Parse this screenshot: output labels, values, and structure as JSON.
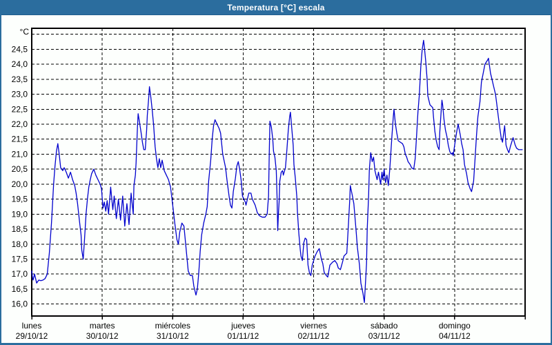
{
  "window": {
    "title": "Temperatura [°C] escala",
    "titlebar_color": "#2b6d9e",
    "border_color": "#2b6d9e"
  },
  "chart_data": {
    "type": "line",
    "title": "Temperatura [°C] escala",
    "y_unit_label": "°C",
    "ylabel": "",
    "xlabel": "",
    "ylim": [
      15.6,
      25.2
    ],
    "y_gridline_min": 16.0,
    "y_gridline_max": 25.0,
    "y_tick_step": 0.5,
    "y_labeled_max": 24.5,
    "decimal_separator": ",",
    "grid": "dashed",
    "legend": "none",
    "line_color": "#0000cd",
    "x_range_days": [
      0,
      7
    ],
    "x_days": [
      {
        "name": "lunes",
        "date": "29/10/12"
      },
      {
        "name": "martes",
        "date": "30/10/12"
      },
      {
        "name": "miércoles",
        "date": "31/10/12"
      },
      {
        "name": "jueves",
        "date": "01/11/12"
      },
      {
        "name": "viernes",
        "date": "02/11/12"
      },
      {
        "name": "sábado",
        "date": "03/11/12"
      },
      {
        "name": "domingo",
        "date": "04/11/12"
      }
    ],
    "series": [
      {
        "name": "Temperatura",
        "points": [
          [
            0.0,
            17.1
          ],
          [
            0.01,
            16.9
          ],
          [
            0.02,
            16.8
          ],
          [
            0.04,
            17.0
          ],
          [
            0.07,
            16.7
          ],
          [
            0.1,
            16.8
          ],
          [
            0.13,
            16.78
          ],
          [
            0.16,
            16.8
          ],
          [
            0.19,
            16.85
          ],
          [
            0.22,
            17.0
          ],
          [
            0.25,
            17.7
          ],
          [
            0.28,
            18.7
          ],
          [
            0.31,
            20.0
          ],
          [
            0.33,
            20.6
          ],
          [
            0.35,
            21.1
          ],
          [
            0.37,
            21.35
          ],
          [
            0.39,
            21.0
          ],
          [
            0.41,
            20.55
          ],
          [
            0.44,
            20.45
          ],
          [
            0.46,
            20.55
          ],
          [
            0.49,
            20.4
          ],
          [
            0.52,
            20.2
          ],
          [
            0.55,
            20.4
          ],
          [
            0.58,
            20.15
          ],
          [
            0.61,
            19.95
          ],
          [
            0.63,
            19.7
          ],
          [
            0.65,
            19.35
          ],
          [
            0.68,
            18.7
          ],
          [
            0.7,
            18.3
          ],
          [
            0.71,
            17.8
          ],
          [
            0.73,
            17.5
          ],
          [
            0.75,
            18.2
          ],
          [
            0.77,
            19.0
          ],
          [
            0.79,
            19.5
          ],
          [
            0.81,
            19.9
          ],
          [
            0.83,
            20.15
          ],
          [
            0.85,
            20.35
          ],
          [
            0.88,
            20.5
          ],
          [
            0.91,
            20.3
          ],
          [
            0.94,
            20.15
          ],
          [
            0.97,
            20.0
          ],
          [
            0.99,
            19.85
          ],
          [
            1.01,
            19.2
          ],
          [
            1.03,
            19.4
          ],
          [
            1.05,
            19.1
          ],
          [
            1.07,
            19.45
          ],
          [
            1.09,
            19.0
          ],
          [
            1.12,
            19.9
          ],
          [
            1.15,
            19.15
          ],
          [
            1.17,
            19.6
          ],
          [
            1.2,
            18.85
          ],
          [
            1.23,
            19.5
          ],
          [
            1.26,
            18.8
          ],
          [
            1.29,
            19.6
          ],
          [
            1.32,
            18.6
          ],
          [
            1.35,
            19.35
          ],
          [
            1.38,
            18.65
          ],
          [
            1.41,
            19.7
          ],
          [
            1.44,
            19.0
          ],
          [
            1.45,
            19.95
          ],
          [
            1.47,
            20.3
          ],
          [
            1.48,
            20.7
          ],
          [
            1.49,
            21.3
          ],
          [
            1.5,
            21.9
          ],
          [
            1.51,
            22.35
          ],
          [
            1.53,
            22.05
          ],
          [
            1.55,
            21.75
          ],
          [
            1.57,
            21.4
          ],
          [
            1.59,
            21.15
          ],
          [
            1.61,
            21.15
          ],
          [
            1.63,
            21.8
          ],
          [
            1.64,
            22.3
          ],
          [
            1.66,
            22.9
          ],
          [
            1.67,
            23.25
          ],
          [
            1.69,
            22.9
          ],
          [
            1.71,
            22.45
          ],
          [
            1.73,
            21.95
          ],
          [
            1.75,
            21.25
          ],
          [
            1.77,
            20.85
          ],
          [
            1.79,
            20.55
          ],
          [
            1.81,
            20.85
          ],
          [
            1.83,
            20.55
          ],
          [
            1.85,
            20.8
          ],
          [
            1.88,
            20.45
          ],
          [
            1.91,
            20.3
          ],
          [
            1.94,
            20.15
          ],
          [
            1.97,
            19.9
          ],
          [
            2.0,
            19.3
          ],
          [
            2.03,
            18.7
          ],
          [
            2.06,
            18.15
          ],
          [
            2.08,
            18.0
          ],
          [
            2.1,
            18.4
          ],
          [
            2.13,
            18.7
          ],
          [
            2.16,
            18.6
          ],
          [
            2.19,
            17.85
          ],
          [
            2.22,
            17.1
          ],
          [
            2.25,
            16.95
          ],
          [
            2.28,
            16.95
          ],
          [
            2.3,
            16.6
          ],
          [
            2.33,
            16.3
          ],
          [
            2.35,
            16.5
          ],
          [
            2.37,
            17.05
          ],
          [
            2.39,
            17.75
          ],
          [
            2.41,
            18.3
          ],
          [
            2.44,
            18.7
          ],
          [
            2.47,
            19.0
          ],
          [
            2.49,
            19.25
          ],
          [
            2.51,
            20.1
          ],
          [
            2.54,
            20.8
          ],
          [
            2.56,
            21.5
          ],
          [
            2.58,
            21.95
          ],
          [
            2.6,
            22.15
          ],
          [
            2.63,
            22.0
          ],
          [
            2.66,
            21.85
          ],
          [
            2.68,
            21.7
          ],
          [
            2.71,
            21.0
          ],
          [
            2.75,
            20.55
          ],
          [
            2.77,
            20.15
          ],
          [
            2.8,
            19.6
          ],
          [
            2.82,
            19.3
          ],
          [
            2.84,
            19.2
          ],
          [
            2.86,
            19.75
          ],
          [
            2.89,
            20.2
          ],
          [
            2.91,
            20.6
          ],
          [
            2.93,
            20.75
          ],
          [
            2.95,
            20.5
          ],
          [
            2.97,
            20.15
          ],
          [
            2.99,
            19.6
          ],
          [
            3.03,
            19.4
          ],
          [
            3.04,
            19.3
          ],
          [
            3.08,
            19.7
          ],
          [
            3.11,
            19.7
          ],
          [
            3.13,
            19.5
          ],
          [
            3.17,
            19.3
          ],
          [
            3.2,
            19.05
          ],
          [
            3.23,
            18.95
          ],
          [
            3.27,
            18.9
          ],
          [
            3.31,
            18.9
          ],
          [
            3.34,
            19.0
          ],
          [
            3.36,
            19.6
          ],
          [
            3.37,
            21.0
          ],
          [
            3.38,
            22.1
          ],
          [
            3.4,
            21.9
          ],
          [
            3.42,
            21.5
          ],
          [
            3.43,
            21.1
          ],
          [
            3.45,
            20.9
          ],
          [
            3.47,
            20.45
          ],
          [
            3.48,
            19.6
          ],
          [
            3.49,
            18.45
          ],
          [
            3.5,
            19.0
          ],
          [
            3.51,
            19.4
          ],
          [
            3.52,
            20.1
          ],
          [
            3.54,
            20.4
          ],
          [
            3.56,
            20.45
          ],
          [
            3.57,
            20.3
          ],
          [
            3.6,
            20.55
          ],
          [
            3.62,
            21.15
          ],
          [
            3.64,
            21.8
          ],
          [
            3.66,
            22.25
          ],
          [
            3.67,
            22.4
          ],
          [
            3.69,
            21.85
          ],
          [
            3.71,
            21.3
          ],
          [
            3.72,
            20.65
          ],
          [
            3.74,
            20.2
          ],
          [
            3.76,
            19.6
          ],
          [
            3.77,
            19.05
          ],
          [
            3.79,
            18.35
          ],
          [
            3.81,
            17.8
          ],
          [
            3.82,
            17.6
          ],
          [
            3.84,
            17.45
          ],
          [
            3.86,
            18.05
          ],
          [
            3.88,
            18.2
          ],
          [
            3.9,
            18.15
          ],
          [
            3.92,
            17.3
          ],
          [
            3.94,
            17.05
          ],
          [
            3.96,
            16.95
          ],
          [
            3.98,
            17.3
          ],
          [
            4.02,
            17.6
          ],
          [
            4.05,
            17.75
          ],
          [
            4.08,
            17.85
          ],
          [
            4.11,
            17.5
          ],
          [
            4.13,
            17.35
          ],
          [
            4.15,
            17.05
          ],
          [
            4.18,
            16.95
          ],
          [
            4.2,
            16.9
          ],
          [
            4.23,
            17.3
          ],
          [
            4.27,
            17.4
          ],
          [
            4.3,
            17.45
          ],
          [
            4.33,
            17.35
          ],
          [
            4.35,
            17.2
          ],
          [
            4.38,
            17.15
          ],
          [
            4.41,
            17.4
          ],
          [
            4.43,
            17.6
          ],
          [
            4.47,
            17.7
          ],
          [
            4.49,
            18.5
          ],
          [
            4.51,
            19.4
          ],
          [
            4.52,
            19.95
          ],
          [
            4.55,
            19.6
          ],
          [
            4.57,
            19.35
          ],
          [
            4.6,
            18.5
          ],
          [
            4.62,
            17.9
          ],
          [
            4.65,
            17.3
          ],
          [
            4.67,
            16.7
          ],
          [
            4.7,
            16.35
          ],
          [
            4.72,
            16.05
          ],
          [
            4.75,
            17.35
          ],
          [
            4.76,
            18.5
          ],
          [
            4.78,
            19.6
          ],
          [
            4.79,
            20.5
          ],
          [
            4.81,
            21.05
          ],
          [
            4.83,
            20.75
          ],
          [
            4.85,
            20.9
          ],
          [
            4.87,
            20.45
          ],
          [
            4.9,
            20.15
          ],
          [
            4.92,
            20.4
          ],
          [
            4.95,
            20.0
          ],
          [
            4.97,
            20.4
          ],
          [
            4.98,
            20.15
          ],
          [
            5.0,
            20.5
          ],
          [
            5.02,
            20.05
          ],
          [
            5.04,
            20.3
          ],
          [
            5.06,
            19.95
          ],
          [
            5.08,
            20.5
          ],
          [
            5.11,
            21.6
          ],
          [
            5.13,
            22.25
          ],
          [
            5.14,
            22.5
          ],
          [
            5.16,
            22.0
          ],
          [
            5.18,
            21.7
          ],
          [
            5.2,
            21.45
          ],
          [
            5.23,
            21.4
          ],
          [
            5.26,
            21.35
          ],
          [
            5.28,
            21.25
          ],
          [
            5.3,
            21.0
          ],
          [
            5.32,
            20.9
          ],
          [
            5.34,
            20.75
          ],
          [
            5.37,
            20.65
          ],
          [
            5.39,
            20.55
          ],
          [
            5.42,
            20.5
          ],
          [
            5.44,
            20.85
          ],
          [
            5.46,
            21.6
          ],
          [
            5.48,
            22.4
          ],
          [
            5.5,
            23.0
          ],
          [
            5.52,
            23.9
          ],
          [
            5.54,
            24.5
          ],
          [
            5.56,
            24.8
          ],
          [
            5.57,
            24.6
          ],
          [
            5.59,
            24.1
          ],
          [
            5.61,
            23.5
          ],
          [
            5.62,
            22.95
          ],
          [
            5.65,
            22.65
          ],
          [
            5.67,
            22.6
          ],
          [
            5.69,
            22.55
          ],
          [
            5.7,
            22.25
          ],
          [
            5.72,
            21.75
          ],
          [
            5.74,
            21.45
          ],
          [
            5.76,
            21.25
          ],
          [
            5.78,
            21.15
          ],
          [
            5.79,
            21.75
          ],
          [
            5.81,
            22.45
          ],
          [
            5.82,
            22.8
          ],
          [
            5.83,
            22.65
          ],
          [
            5.85,
            22.15
          ],
          [
            5.87,
            21.8
          ],
          [
            5.89,
            21.6
          ],
          [
            5.91,
            21.3
          ],
          [
            5.93,
            21.1
          ],
          [
            5.95,
            21.0
          ],
          [
            5.97,
            21.05
          ],
          [
            5.98,
            20.95
          ],
          [
            6.0,
            21.3
          ],
          [
            6.03,
            21.75
          ],
          [
            6.05,
            22.0
          ],
          [
            6.08,
            21.65
          ],
          [
            6.1,
            21.35
          ],
          [
            6.12,
            21.15
          ],
          [
            6.14,
            20.65
          ],
          [
            6.17,
            20.35
          ],
          [
            6.19,
            20.05
          ],
          [
            6.22,
            19.85
          ],
          [
            6.24,
            19.75
          ],
          [
            6.27,
            20.1
          ],
          [
            6.29,
            20.85
          ],
          [
            6.31,
            21.6
          ],
          [
            6.33,
            22.25
          ],
          [
            6.36,
            22.75
          ],
          [
            6.38,
            23.4
          ],
          [
            6.41,
            23.75
          ],
          [
            6.43,
            24.0
          ],
          [
            6.47,
            24.15
          ],
          [
            6.48,
            24.2
          ],
          [
            6.51,
            23.7
          ],
          [
            6.53,
            23.5
          ],
          [
            6.55,
            23.3
          ],
          [
            6.58,
            23.0
          ],
          [
            6.6,
            22.65
          ],
          [
            6.62,
            22.25
          ],
          [
            6.64,
            21.9
          ],
          [
            6.66,
            21.55
          ],
          [
            6.68,
            21.4
          ],
          [
            6.71,
            21.95
          ],
          [
            6.73,
            21.3
          ],
          [
            6.75,
            21.15
          ],
          [
            6.77,
            21.05
          ],
          [
            6.79,
            21.25
          ],
          [
            6.81,
            21.4
          ],
          [
            6.83,
            21.55
          ],
          [
            6.86,
            21.3
          ],
          [
            6.88,
            21.2
          ],
          [
            6.91,
            21.15
          ],
          [
            6.94,
            21.15
          ],
          [
            6.96,
            21.15
          ]
        ]
      }
    ]
  }
}
